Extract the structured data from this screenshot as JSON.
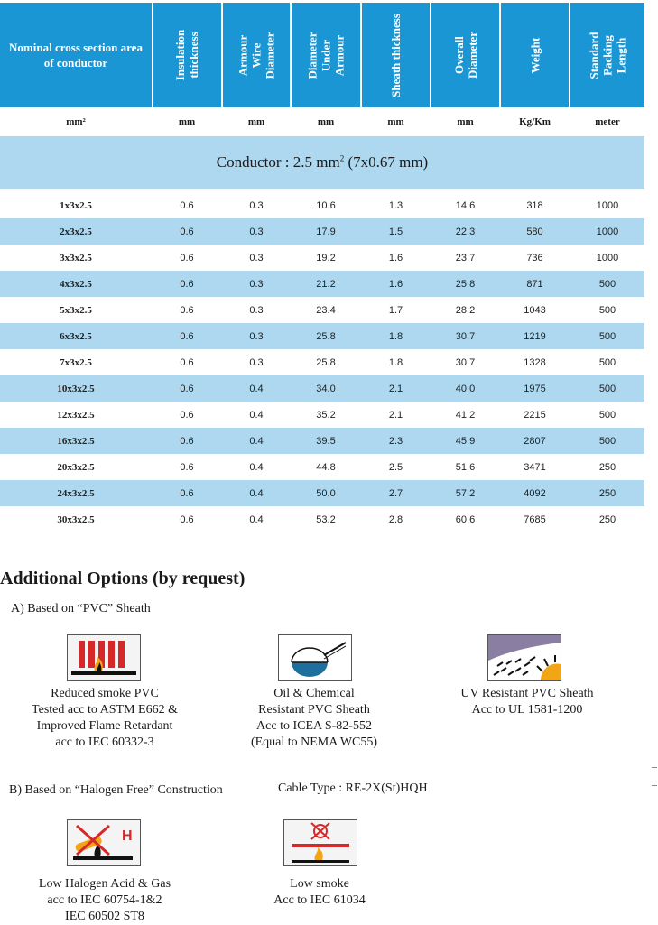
{
  "header": {
    "columns": [
      {
        "title": "Nominal cross section area of conductor",
        "unit": "mm²"
      },
      {
        "title": "Insulation thickness",
        "unit": "mm"
      },
      {
        "title": "Armour Wire Diameter",
        "unit": "mm"
      },
      {
        "title": "Diameter Under Armour",
        "unit": "mm"
      },
      {
        "title": "Sheath thickness",
        "unit": "mm"
      },
      {
        "title": "Overall Diameter",
        "unit": "mm"
      },
      {
        "title": "Weight",
        "unit": "Kg/Km"
      },
      {
        "title": "Standard Packing Length",
        "unit": "meter"
      }
    ]
  },
  "conductor": {
    "prefix": "Conductor : 2.5 mm",
    "sup": "2",
    "suffix": " (7x0.67 mm)"
  },
  "rows": [
    [
      "1x3x2.5",
      "0.6",
      "0.3",
      "10.6",
      "1.3",
      "14.6",
      "318",
      "1000"
    ],
    [
      "2x3x2.5",
      "0.6",
      "0.3",
      "17.9",
      "1.5",
      "22.3",
      "580",
      "1000"
    ],
    [
      "3x3x2.5",
      "0.6",
      "0.3",
      "19.2",
      "1.6",
      "23.7",
      "736",
      "1000"
    ],
    [
      "4x3x2.5",
      "0.6",
      "0.3",
      "21.2",
      "1.6",
      "25.8",
      "871",
      "500"
    ],
    [
      "5x3x2.5",
      "0.6",
      "0.3",
      "23.4",
      "1.7",
      "28.2",
      "1043",
      "500"
    ],
    [
      "6x3x2.5",
      "0.6",
      "0.3",
      "25.8",
      "1.8",
      "30.7",
      "1219",
      "500"
    ],
    [
      "7x3x2.5",
      "0.6",
      "0.3",
      "25.8",
      "1.8",
      "30.7",
      "1328",
      "500"
    ],
    [
      "10x3x2.5",
      "0.6",
      "0.4",
      "34.0",
      "2.1",
      "40.0",
      "1975",
      "500"
    ],
    [
      "12x3x2.5",
      "0.6",
      "0.4",
      "35.2",
      "2.1",
      "41.2",
      "2215",
      "500"
    ],
    [
      "16x3x2.5",
      "0.6",
      "0.4",
      "39.5",
      "2.3",
      "45.9",
      "2807",
      "500"
    ],
    [
      "20x3x2.5",
      "0.6",
      "0.4",
      "44.8",
      "2.5",
      "51.6",
      "3471",
      "250"
    ],
    [
      "24x3x2.5",
      "0.6",
      "0.4",
      "50.0",
      "2.7",
      "57.2",
      "4092",
      "250"
    ],
    [
      "30x3x2.5",
      "0.6",
      "0.4",
      "53.2",
      "2.8",
      "60.6",
      "7685",
      "250"
    ]
  ],
  "options": {
    "title": "Additional Options (by request)",
    "section_a": "A) Based on “PVC” Sheath",
    "section_b": "B) Based on “Halogen Free” Construction",
    "cable_type": "Cable Type : RE-2X(St)HQH",
    "items_a": [
      {
        "icon": "reduced-smoke-icon",
        "caption": "Reduced smoke PVC\nTested acc to ASTM E662 &\nImproved Flame Retardant\nacc to IEC 60332-3"
      },
      {
        "icon": "oil-chemical-icon",
        "caption": "Oil & Chemical\nResistant PVC Sheath\nAcc to ICEA S-82-552\n(Equal to NEMA WC55)"
      },
      {
        "icon": "uv-resistant-icon",
        "caption": "UV Resistant PVC Sheath\nAcc to UL 1581-1200"
      }
    ],
    "items_b": [
      {
        "icon": "low-halogen-icon",
        "caption": "Low Halogen Acid & Gas\nacc to IEC 60754-1&2\nIEC 60502 ST8",
        "badge": "H"
      },
      {
        "icon": "low-smoke-icon",
        "caption": "Low smoke\nAcc to IEC 61034"
      }
    ]
  },
  "colors": {
    "header_blue": "#1a96d4",
    "row_light_blue": "#add8f0"
  }
}
